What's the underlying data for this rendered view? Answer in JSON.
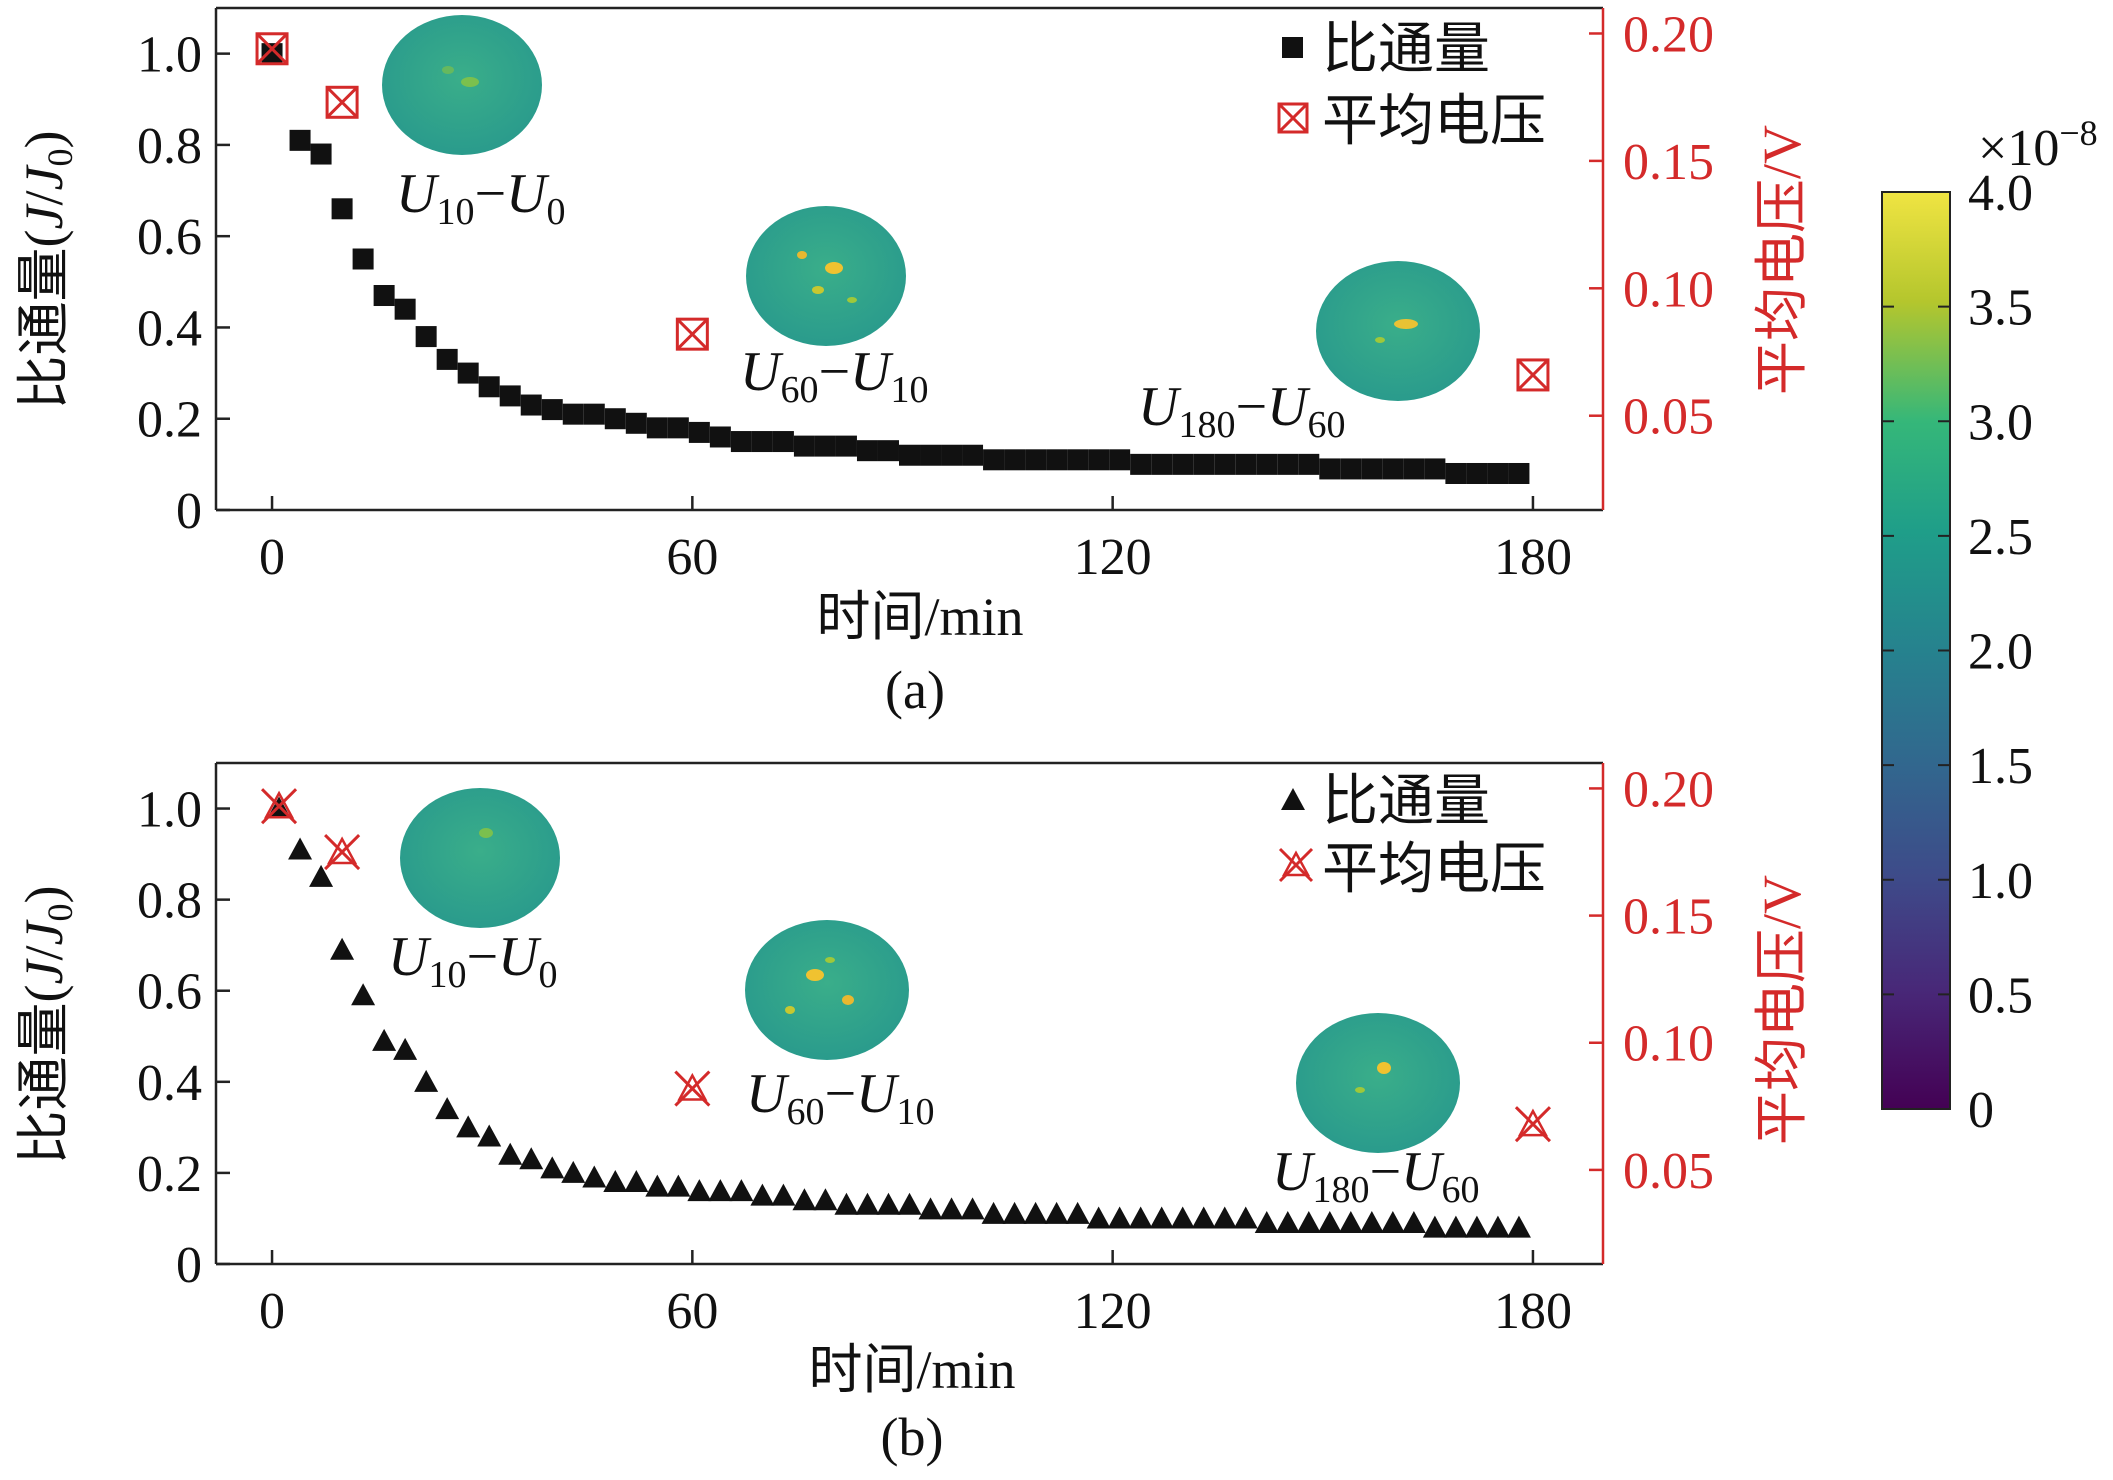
{
  "chart_data": [
    {
      "type": "scatter",
      "panel_label": "(a)",
      "flux_marker": "square",
      "voltage_marker": "boxed-x",
      "xlabel": "时间/min",
      "ylabel": "比通量(J/J0)",
      "ylabel_main": "比通量(",
      "ylabel_J": "J",
      "ylabel_slash": "/",
      "ylabel_J0": "J",
      "ylabel_J0_sub": "0",
      "ylabel_close": ")",
      "y2label": "平均电压/V",
      "xlim": [
        -8,
        190
      ],
      "ylim": [
        0,
        1.1
      ],
      "y2lim": [
        0.013,
        0.21
      ],
      "xticks": [
        "0",
        "60",
        "120",
        "180"
      ],
      "yticks": [
        "0",
        "0.2",
        "0.4",
        "0.6",
        "0.8",
        "1.0"
      ],
      "y2ticks": [
        "0.05",
        "0.10",
        "0.15",
        "0.20"
      ],
      "legend": [
        "比通量",
        "平均电压"
      ],
      "series": [
        {
          "name": "比通量",
          "axis": "left",
          "x": [
            0,
            4,
            7,
            10,
            13,
            16,
            19,
            22,
            25,
            28,
            31,
            34,
            37,
            40,
            43,
            46,
            49,
            52,
            55,
            58,
            61,
            64,
            67,
            70,
            73,
            76,
            79,
            82,
            85,
            88,
            91,
            94,
            97,
            100,
            103,
            106,
            109,
            112,
            115,
            118,
            121,
            124,
            127,
            130,
            133,
            136,
            139,
            142,
            145,
            148,
            151,
            154,
            157,
            160,
            163,
            166,
            169,
            172,
            175,
            178
          ],
          "y": [
            1.0,
            0.81,
            0.78,
            0.66,
            0.55,
            0.47,
            0.44,
            0.38,
            0.33,
            0.3,
            0.27,
            0.25,
            0.23,
            0.22,
            0.21,
            0.21,
            0.2,
            0.19,
            0.18,
            0.18,
            0.17,
            0.16,
            0.15,
            0.15,
            0.15,
            0.14,
            0.14,
            0.14,
            0.13,
            0.13,
            0.12,
            0.12,
            0.12,
            0.12,
            0.11,
            0.11,
            0.11,
            0.11,
            0.11,
            0.11,
            0.11,
            0.1,
            0.1,
            0.1,
            0.1,
            0.1,
            0.1,
            0.1,
            0.1,
            0.1,
            0.09,
            0.09,
            0.09,
            0.09,
            0.09,
            0.09,
            0.08,
            0.08,
            0.08,
            0.08
          ]
        },
        {
          "name": "平均电压",
          "axis": "right",
          "x": [
            0,
            10,
            60,
            180
          ],
          "y": [
            0.194,
            0.173,
            0.082,
            0.066
          ]
        }
      ],
      "annotations": [
        {
          "a": "U",
          "a_sub": "10",
          "dash": "−",
          "b": "U",
          "b_sub": "0"
        },
        {
          "a": "U",
          "a_sub": "60",
          "dash": "−",
          "b": "U",
          "b_sub": "10"
        },
        {
          "a": "U",
          "a_sub": "180",
          "dash": "−",
          "b": "U",
          "b_sub": "60"
        }
      ]
    },
    {
      "type": "scatter",
      "panel_label": "(b)",
      "flux_marker": "triangle",
      "voltage_marker": "star-x",
      "xlabel": "时间/min",
      "ylabel": "比通量(J/J0)",
      "ylabel_main": "比通量(",
      "ylabel_J": "J",
      "ylabel_slash": "/",
      "ylabel_J0": "J",
      "ylabel_J0_sub": "0",
      "ylabel_close": ")",
      "y2label": "平均电压/V",
      "xlim": [
        -8,
        190
      ],
      "ylim": [
        0,
        1.1
      ],
      "y2lim": [
        0.013,
        0.21
      ],
      "xticks": [
        "0",
        "60",
        "120",
        "180"
      ],
      "yticks": [
        "0",
        "0.2",
        "0.4",
        "0.6",
        "0.8",
        "1.0"
      ],
      "y2ticks": [
        "0.05",
        "0.10",
        "0.15",
        "0.20"
      ],
      "legend": [
        "比通量",
        "平均电压"
      ],
      "series": [
        {
          "name": "比通量",
          "axis": "left",
          "x": [
            1,
            4,
            7,
            10,
            13,
            16,
            19,
            22,
            25,
            28,
            31,
            34,
            37,
            40,
            43,
            46,
            49,
            52,
            55,
            58,
            61,
            64,
            67,
            70,
            73,
            76,
            79,
            82,
            85,
            88,
            91,
            94,
            97,
            100,
            103,
            106,
            109,
            112,
            115,
            118,
            121,
            124,
            127,
            130,
            133,
            136,
            139,
            142,
            145,
            148,
            151,
            154,
            157,
            160,
            163,
            166,
            169,
            172,
            175,
            178
          ],
          "y": [
            1.0,
            0.91,
            0.85,
            0.69,
            0.59,
            0.49,
            0.47,
            0.4,
            0.34,
            0.3,
            0.28,
            0.24,
            0.23,
            0.21,
            0.2,
            0.19,
            0.18,
            0.18,
            0.17,
            0.17,
            0.16,
            0.16,
            0.16,
            0.15,
            0.15,
            0.14,
            0.14,
            0.13,
            0.13,
            0.13,
            0.13,
            0.12,
            0.12,
            0.12,
            0.11,
            0.11,
            0.11,
            0.11,
            0.11,
            0.1,
            0.1,
            0.1,
            0.1,
            0.1,
            0.1,
            0.1,
            0.1,
            0.09,
            0.09,
            0.09,
            0.09,
            0.09,
            0.09,
            0.09,
            0.09,
            0.08,
            0.08,
            0.08,
            0.08,
            0.08
          ]
        },
        {
          "name": "平均电压",
          "axis": "right",
          "x": [
            1,
            10,
            60,
            180
          ],
          "y": [
            0.193,
            0.175,
            0.082,
            0.068
          ]
        }
      ],
      "annotations": [
        {
          "a": "U",
          "a_sub": "10",
          "dash": "−",
          "b": "U",
          "b_sub": "0"
        },
        {
          "a": "U",
          "a_sub": "60",
          "dash": "−",
          "b": "U",
          "b_sub": "10"
        },
        {
          "a": "U",
          "a_sub": "180",
          "dash": "−",
          "b": "U",
          "b_sub": "60"
        }
      ]
    }
  ],
  "colorbar": {
    "multiplier": "×10",
    "multiplier_exp": "−8",
    "ticks": [
      "0",
      "0.5",
      "1.0",
      "1.5",
      "2.0",
      "2.5",
      "3.0",
      "3.5",
      "4.0"
    ],
    "colormap": "viridis"
  },
  "colors": {
    "flux": "#111111",
    "voltage": "#d42a2a",
    "right_axis": "#d42a2a"
  }
}
